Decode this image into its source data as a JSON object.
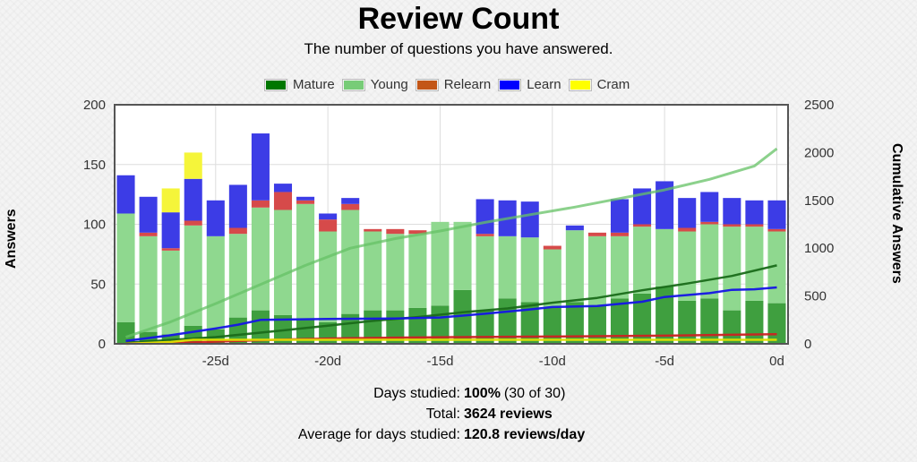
{
  "title": "Review Count",
  "subtitle": "The number of questions you have answered.",
  "legend": [
    {
      "label": "Mature",
      "color": "#007700"
    },
    {
      "label": "Young",
      "color": "#77cc77"
    },
    {
      "label": "Relearn",
      "color": "#c35617"
    },
    {
      "label": "Learn",
      "color": "#0000ff"
    },
    {
      "label": "Cram",
      "color": "#ffff00"
    }
  ],
  "stats": {
    "days_label": "Days studied:",
    "days_value": "100%",
    "days_extra": "(30 of 30)",
    "total_label": "Total:",
    "total_value": "3624 reviews",
    "avg_label": "Average for days studied:",
    "avg_value": "120.8 reviews/day"
  },
  "chart_data": {
    "type": "bar",
    "stacked": true,
    "title": "Review Count",
    "subtitle": "The number of questions you have answered.",
    "xlabel": "",
    "ylabel": "Answers",
    "y2label": "Cumulative Answers",
    "ylim": [
      0,
      200
    ],
    "y2lim": [
      0,
      2500
    ],
    "xlim": [
      -29.5,
      0.5
    ],
    "yticks": [
      0,
      50,
      100,
      150,
      200
    ],
    "y2ticks": [
      0,
      500,
      1000,
      1500,
      2000,
      2500
    ],
    "xticks": [
      -25,
      -20,
      -15,
      -10,
      -5,
      0
    ],
    "xticklabels": [
      "-25d",
      "-20d",
      "-15d",
      "-10d",
      "-5d",
      "0d"
    ],
    "grid": true,
    "days": [
      -29,
      -28,
      -27,
      -26,
      -25,
      -24,
      -23,
      -22,
      -21,
      -20,
      -19,
      -18,
      -17,
      -16,
      -15,
      -14,
      -13,
      -12,
      -11,
      -10,
      -9,
      -8,
      -7,
      -6,
      -5,
      -4,
      -3,
      -2,
      -1,
      0
    ],
    "series": [
      {
        "name": "Mature",
        "color": "#3f9f3f",
        "values": [
          18,
          10,
          8,
          15,
          12,
          22,
          28,
          24,
          20,
          18,
          25,
          28,
          28,
          30,
          32,
          45,
          28,
          38,
          35,
          30,
          35,
          32,
          38,
          42,
          48,
          36,
          38,
          28,
          36,
          34
        ]
      },
      {
        "name": "Young",
        "color": "#8fd88f",
        "values": [
          91,
          80,
          70,
          84,
          78,
          70,
          86,
          88,
          97,
          76,
          87,
          66,
          64,
          62,
          70,
          57,
          62,
          52,
          54,
          49,
          60,
          58,
          52,
          56,
          48,
          58,
          62,
          70,
          62,
          60
        ]
      },
      {
        "name": "Relearn",
        "color": "#d64a4a",
        "values": [
          0,
          3,
          2,
          4,
          0,
          5,
          6,
          15,
          3,
          10,
          5,
          2,
          4,
          3,
          0,
          0,
          2,
          0,
          0,
          3,
          0,
          3,
          3,
          2,
          0,
          3,
          2,
          2,
          2,
          2
        ]
      },
      {
        "name": "Learn",
        "color": "#3c3ce6",
        "values": [
          32,
          30,
          30,
          35,
          30,
          36,
          56,
          7,
          3,
          5,
          5,
          0,
          0,
          0,
          0,
          0,
          29,
          30,
          30,
          0,
          4,
          0,
          28,
          30,
          40,
          25,
          25,
          22,
          20,
          24
        ]
      },
      {
        "name": "Cram",
        "color": "#f5f53a",
        "values": [
          0,
          0,
          20,
          22,
          0,
          0,
          0,
          0,
          0,
          0,
          0,
          0,
          0,
          0,
          0,
          0,
          0,
          0,
          0,
          0,
          0,
          0,
          0,
          0,
          0,
          0,
          0,
          0,
          0,
          0
        ]
      }
    ],
    "cumulative_series": [
      {
        "name": "Young (cumulative)",
        "color": "#66c266",
        "points": [
          [
            -29,
            70
          ],
          [
            -27,
            230
          ],
          [
            -25,
            420
          ],
          [
            -23,
            620
          ],
          [
            -21,
            820
          ],
          [
            -19,
            1000
          ],
          [
            -17,
            1100
          ],
          [
            -15,
            1180
          ],
          [
            -13,
            1270
          ],
          [
            -11,
            1350
          ],
          [
            -9,
            1430
          ],
          [
            -7,
            1520
          ],
          [
            -5,
            1610
          ],
          [
            -3,
            1720
          ],
          [
            -1,
            1860
          ],
          [
            0,
            2040
          ]
        ]
      },
      {
        "name": "Mature (cumulative)",
        "color": "#1a6b1a",
        "points": [
          [
            -29,
            10
          ],
          [
            -25,
            70
          ],
          [
            -22,
            140
          ],
          [
            -20,
            190
          ],
          [
            -18,
            240
          ],
          [
            -16,
            280
          ],
          [
            -14,
            330
          ],
          [
            -12,
            370
          ],
          [
            -10,
            430
          ],
          [
            -8,
            480
          ],
          [
            -6,
            560
          ],
          [
            -4,
            630
          ],
          [
            -2,
            710
          ],
          [
            0,
            820
          ]
        ]
      },
      {
        "name": "Learn (cumulative)",
        "color": "#1515e6",
        "points": [
          [
            -29,
            30
          ],
          [
            -27,
            90
          ],
          [
            -25,
            160
          ],
          [
            -24,
            200
          ],
          [
            -23,
            250
          ],
          [
            -20,
            260
          ],
          [
            -17,
            265
          ],
          [
            -15,
            275
          ],
          [
            -13,
            315
          ],
          [
            -11,
            360
          ],
          [
            -10,
            385
          ],
          [
            -8,
            395
          ],
          [
            -6,
            440
          ],
          [
            -5,
            490
          ],
          [
            -3,
            530
          ],
          [
            -2,
            565
          ],
          [
            -1,
            570
          ],
          [
            0,
            590
          ]
        ]
      },
      {
        "name": "Relearn (cumulative)",
        "color": "#cc2222",
        "points": [
          [
            -29,
            2
          ],
          [
            -26,
            15
          ],
          [
            -24,
            30
          ],
          [
            -22,
            45
          ],
          [
            -20,
            55
          ],
          [
            -17,
            65
          ],
          [
            -14,
            70
          ],
          [
            -11,
            75
          ],
          [
            -8,
            80
          ],
          [
            -5,
            85
          ],
          [
            -2,
            95
          ],
          [
            0,
            100
          ]
        ]
      },
      {
        "name": "Cram (cumulative)",
        "color": "#e0e000",
        "points": [
          [
            -29,
            0
          ],
          [
            -27,
            20
          ],
          [
            -26,
            42
          ],
          [
            -20,
            42
          ],
          [
            -10,
            42
          ],
          [
            0,
            42
          ]
        ]
      }
    ]
  }
}
